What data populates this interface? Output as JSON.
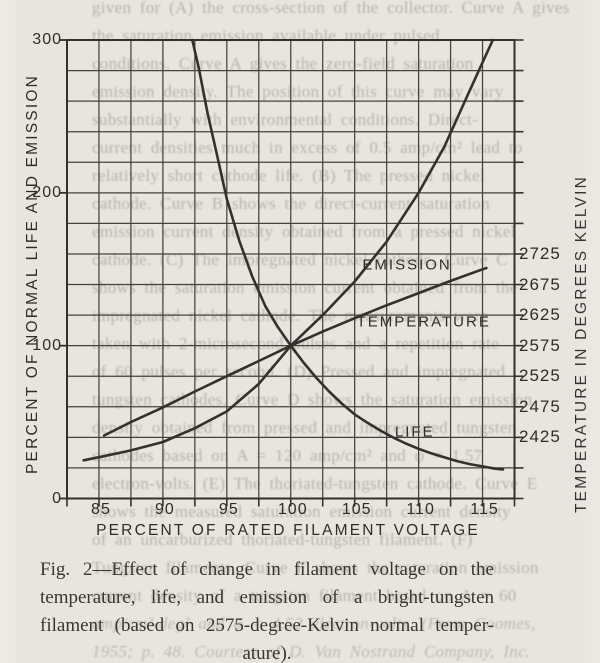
{
  "figure": {
    "caption_lines": [
      "Fig. 2—Effect of change in filament voltage on the",
      "temperature, life, and emission of a bright-tungsten",
      "filament (based on 2575-degree-Kelvin normal temper-",
      "ature)."
    ]
  },
  "chart": {
    "x_axis": {
      "label": "PERCENT OF RATED FILAMENT VOLTAGE",
      "min": 82.5,
      "max": 117.5,
      "grid_step": 2.5,
      "ticks": [
        85,
        90,
        95,
        100,
        105,
        110,
        115
      ]
    },
    "y_left": {
      "label": "PERCENT OF NORMAL LIFE AND EMISSION",
      "min": 0,
      "max": 300,
      "grid_step": 20,
      "ticks": [
        300,
        200,
        100,
        0
      ]
    },
    "y_right": {
      "label": "TEMPERATURE IN DEGREES KELVIN",
      "ticks": [
        2725,
        2675,
        2625,
        2575,
        2525,
        2475,
        2425
      ],
      "ref_kelvin": 2575,
      "ref_percent": 100,
      "percent_per_kelvin": 0.4
    }
  },
  "chart_data": {
    "type": "line",
    "title": "",
    "xlabel": "PERCENT OF RATED FILAMENT VOLTAGE",
    "ylabel_left": "PERCENT OF NORMAL LIFE AND EMISSION",
    "ylabel_right": "TEMPERATURE IN DEGREES KELVIN",
    "xlim": [
      82.5,
      117.5
    ],
    "ylim_left": [
      0,
      300
    ],
    "grid": true,
    "legend_position": "inline-labels",
    "series": [
      {
        "name": "LIFE",
        "axis": "left",
        "points": [
          [
            92.3,
            300
          ],
          [
            92.8,
            282
          ],
          [
            93.5,
            252
          ],
          [
            94.2,
            226
          ],
          [
            95,
            196
          ],
          [
            96,
            168
          ],
          [
            97,
            145
          ],
          [
            98,
            126
          ],
          [
            99,
            112
          ],
          [
            100,
            100
          ],
          [
            101,
            89
          ],
          [
            102,
            79
          ],
          [
            103,
            70
          ],
          [
            104,
            62
          ],
          [
            105,
            55
          ],
          [
            106,
            49.5
          ],
          [
            107,
            44.5
          ],
          [
            108,
            40
          ],
          [
            109,
            36
          ],
          [
            110,
            32.5
          ],
          [
            111,
            29.5
          ],
          [
            112,
            27
          ],
          [
            113,
            24.5
          ],
          [
            114,
            22.5
          ],
          [
            115,
            21
          ],
          [
            116,
            19.5
          ],
          [
            116.6,
            19
          ]
        ]
      },
      {
        "name": "EMISSION",
        "axis": "left",
        "points": [
          [
            83.8,
            25
          ],
          [
            85,
            27
          ],
          [
            87.5,
            31.5
          ],
          [
            90,
            37
          ],
          [
            92.5,
            46
          ],
          [
            95,
            57
          ],
          [
            97.5,
            75
          ],
          [
            100,
            100
          ],
          [
            102.5,
            120
          ],
          [
            105,
            142
          ],
          [
            107.5,
            168
          ],
          [
            110,
            200
          ],
          [
            112,
            230
          ],
          [
            114,
            267
          ],
          [
            115.8,
            300
          ]
        ]
      },
      {
        "name": "TEMPERATURE",
        "axis": "right",
        "points": [
          [
            85.4,
            2428
          ],
          [
            87.5,
            2450
          ],
          [
            90,
            2474
          ],
          [
            92.5,
            2500
          ],
          [
            95,
            2525
          ],
          [
            97.5,
            2550
          ],
          [
            100,
            2575
          ],
          [
            102.5,
            2598
          ],
          [
            105,
            2620
          ],
          [
            107.5,
            2641
          ],
          [
            110,
            2661
          ],
          [
            112.5,
            2681
          ],
          [
            115,
            2700
          ],
          [
            115.3,
            2702
          ]
        ]
      }
    ],
    "curve_labels": [
      {
        "text": "EMISSION",
        "x": 109.1,
        "percent": 153
      },
      {
        "text": "TEMPERATURE",
        "x": 110.4,
        "percent": 115.5
      },
      {
        "text": "LIFE",
        "x": 109.7,
        "percent": 43.8
      }
    ]
  },
  "bleed_through": {
    "lines": [
      {
        "text": "given for (A) the cross-section of the collector. Curve A gives"
      },
      {
        "text": "the saturation emission available under pulsed"
      },
      {
        "text": "conditions. Curve A gives the zero-field saturation"
      },
      {
        "text": "emission density. The position of this curve may vary"
      },
      {
        "text": "substantially with environmental conditions. Direct-"
      },
      {
        "text": "current densities much in excess of 0.5 amp/cm² lead to"
      },
      {
        "text": "relatively short cathode life. (B) The pressed nickel"
      },
      {
        "text": "cathode. Curve B shows the direct-current saturation"
      },
      {
        "text": "emission current density obtained from a pressed nickel"
      },
      {
        "text": "cathode. (C) The impregnated nickel cathode. Curve C"
      },
      {
        "text": "shows the saturation emission current obtained from the"
      },
      {
        "text": "impregnated nickel cathode. The measurements were"
      },
      {
        "text": "taken with 2-microsecond pulses and a repetition rate"
      },
      {
        "text": "of 60 pulses per second. (D) Pressed and impregnated"
      },
      {
        "text": "tungsten cathodes. Curve D shows the saturation emission"
      },
      {
        "text": "density obtained from pressed and impregnated tungsten"
      },
      {
        "text": "cathodes based on A = 120 amp/cm² and φ = 1.57"
      },
      {
        "text": "electron-volts. (E) The thoriated-tungsten cathode. Curve E"
      },
      {
        "text": "shows the measured saturation emission current density"
      },
      {
        "text": "of an uncarburized thoriated-tungsten filament. (F)"
      },
      {
        "text": "Tungsten filaments. Curve F shows the saturation emission"
      },
      {
        "text": "current density of a tungsten filament based on A = 60"
      },
      {
        "text": "amp/cm²-deg² and φ = 4.52 electron-volts. (From Coomes,",
        "italic": true
      },
      {
        "text": "1955; p. 48. Courtesy of D. Van Nostrand Company, Inc.",
        "italic": true
      }
    ]
  },
  "colors": {
    "paper": "#e8e5df",
    "ink": "#33312e",
    "grid": "#45423e",
    "ghost": "#968e7e"
  }
}
